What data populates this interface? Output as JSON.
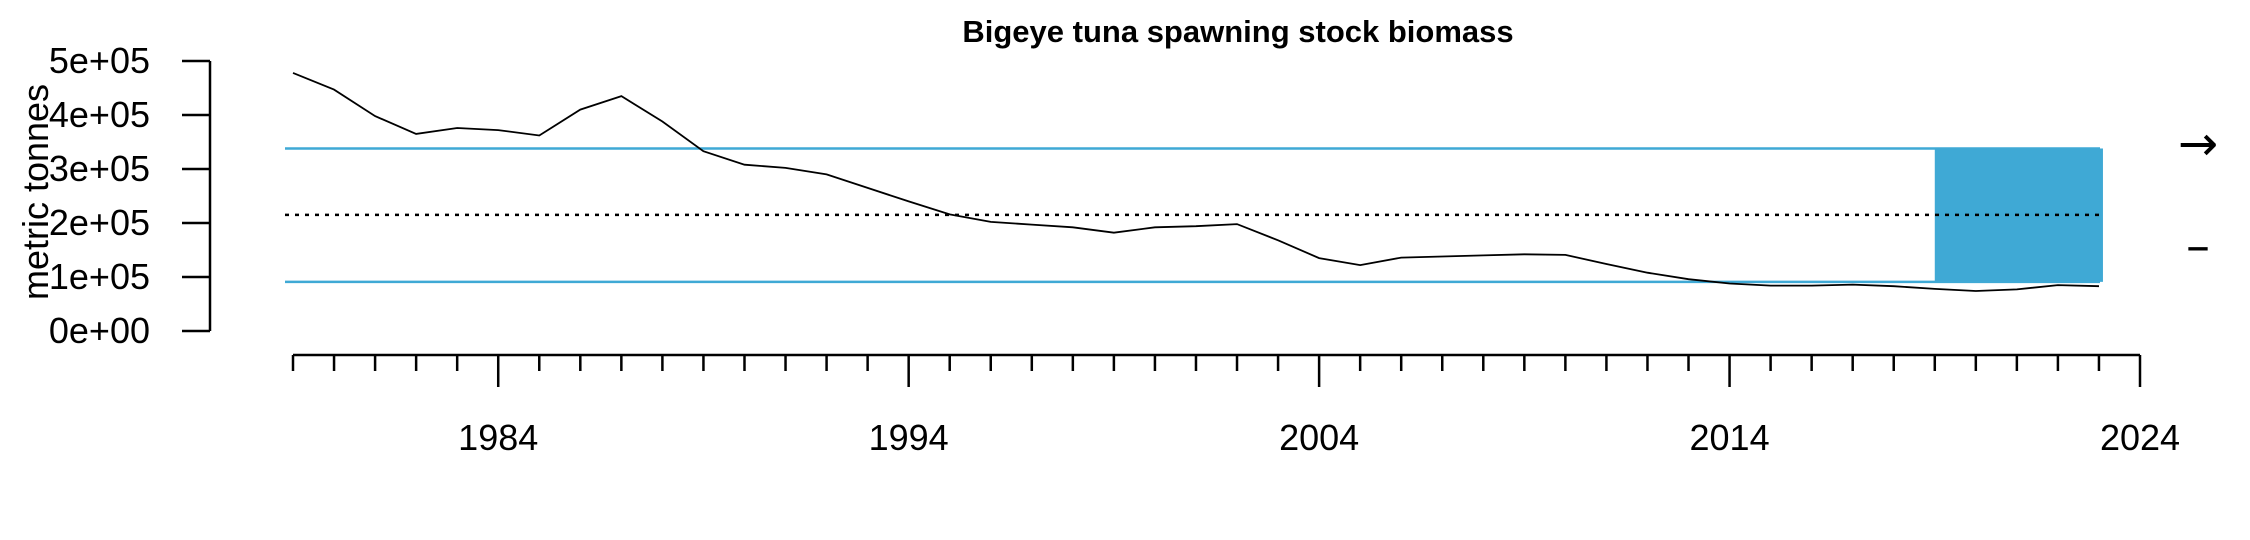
{
  "chart_data": {
    "type": "line",
    "title": "Bigeye tuna spawning stock biomass",
    "xlabel": "",
    "ylabel": "metric tonnes",
    "xlim": [
      1979,
      2024
    ],
    "ylim": [
      0,
      500000
    ],
    "x_ticks": [
      1984,
      1994,
      2004,
      2014,
      2024
    ],
    "x_tick_labels": [
      "1984",
      "1994",
      "2004",
      "2014",
      "2024"
    ],
    "y_ticks": [
      0,
      100000,
      200000,
      300000,
      400000,
      500000
    ],
    "y_tick_labels": [
      "0e+00",
      "1e+05",
      "2e+05",
      "3e+05",
      "4e+05",
      "5e+05"
    ],
    "grid": false,
    "series": [
      {
        "x": [
          1979,
          1980,
          1981,
          1982,
          1983,
          1984,
          1985,
          1986,
          1987,
          1988,
          1989,
          1990,
          1991,
          1992,
          1993,
          1994,
          1995,
          1996,
          1997,
          1998,
          1999,
          2000,
          2001,
          2002,
          2003,
          2004,
          2005,
          2006,
          2007,
          2008,
          2009,
          2010,
          2011,
          2012,
          2013,
          2014,
          2015,
          2016,
          2017,
          2018,
          2019,
          2020,
          2021,
          2022,
          2023
        ],
        "values": [
          478000,
          447000,
          398000,
          365000,
          376000,
          372000,
          362000,
          410000,
          435000,
          388000,
          333000,
          308000,
          302000,
          290000,
          265000,
          240000,
          216000,
          202000,
          197000,
          192000,
          182000,
          192000,
          194000,
          198000,
          168000,
          135000,
          122000,
          136000,
          138000,
          140000,
          142000,
          141000,
          124000,
          108000,
          96000,
          88000,
          84000,
          84000,
          86000,
          83000,
          78000,
          74000,
          77000,
          85000,
          83000
        ],
        "color": "#000000"
      }
    ],
    "reference_lines": [
      {
        "value": 338000,
        "style": "solid",
        "color": "#3fa9d5"
      },
      {
        "value": 215000,
        "style": "dotted",
        "color": "#000000"
      },
      {
        "value": 91000,
        "style": "solid",
        "color": "#3fa9d5"
      }
    ],
    "shaded_region": {
      "x_start": 2019,
      "x_end": 2023,
      "y_start": 91000,
      "y_end": 338000,
      "color": "#3fa9d5"
    },
    "side_symbols": [
      "→",
      "–"
    ],
    "colors": {
      "reference": "#3fa9d5",
      "band": "#3fa9d5",
      "line": "#000000"
    }
  }
}
